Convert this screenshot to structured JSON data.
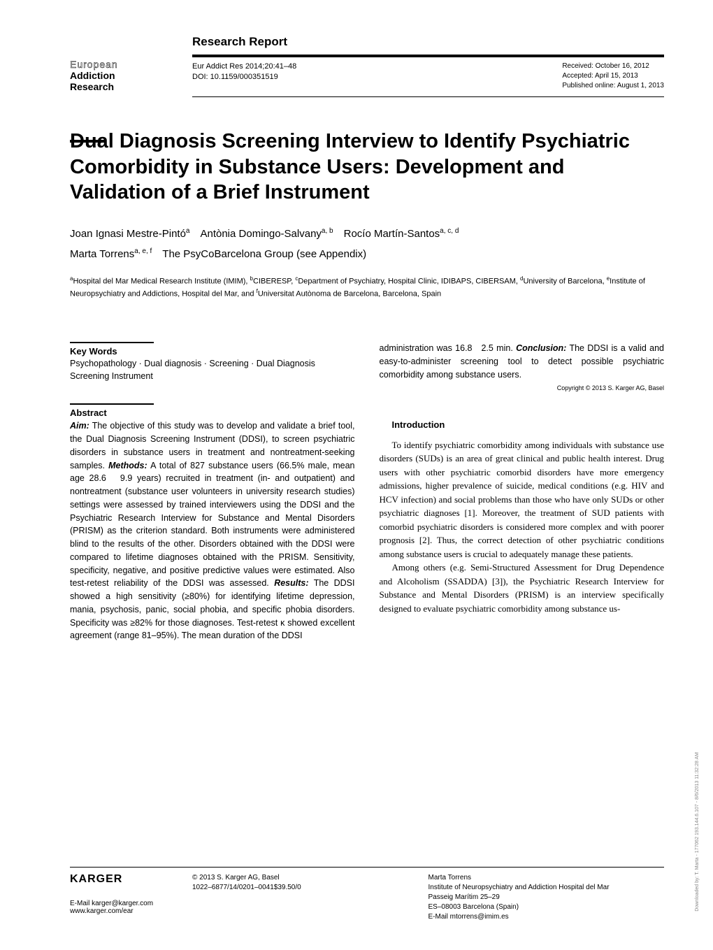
{
  "header": {
    "report_type": "Research Report",
    "journal_brand": {
      "line1": "European",
      "line2": "Addiction",
      "line3": "Research"
    },
    "citation": "Eur Addict Res 2014;20:41–48",
    "doi": "DOI: 10.1159/000351519",
    "received": "Received: October 16, 2012",
    "accepted": "Accepted: April 15, 2013",
    "published": "Published online: August 1, 2013"
  },
  "title": "Dual Diagnosis Screening Interview to Identify Psychiatric Comorbidity in Substance Users: Development and Validation of a Brief Instrument",
  "authors_html": "Joan Ignasi Mestre-Pintó<sup>a</sup><span class='author-sep'></span>Antònia Domingo-Salvany<sup>a, b</sup><span class='author-sep'></span>Rocío Martín-Santos<sup>a, c, d</sup><br>Marta Torrens<sup>a, e, f</sup><span class='author-sep'></span>The PsyCoBarcelona Group (see Appendix)",
  "affiliations_html": "<sup>a</sup>Hospital del Mar Medical Research Institute (IMIM), <sup>b</sup>CIBERESP, <sup>c</sup>Department of Psychiatry, Hospital Clinic, IDIBAPS, CIBERSAM, <sup>d</sup>University of Barcelona, <sup>e</sup>Institute of Neuropsychiatry and Addictions, Hospital del Mar, and <sup>f</sup>Universitat Autònoma de Barcelona, Barcelona, Spain",
  "keywords": {
    "head": "Key Words",
    "body": "Psychopathology · Dual diagnosis · Screening · Dual Diagnosis Screening Instrument"
  },
  "abstract": {
    "head": "Abstract",
    "body_html": "<b>Aim:</b> The objective of this study was to develop and validate a brief tool, the Dual Diagnosis Screening Instrument (DDSI), to screen psychiatric disorders in substance users in treatment and nontreatment-seeking samples. <b>Methods:</b> A total of 827 substance users (66.5% male, mean age 28.6 &nbsp; 9.9 years) recruited in treatment (in- and outpatient) and nontreatment (substance user volunteers in university research studies) settings were assessed by trained interviewers using the DDSI and the Psychiatric Research Interview for Substance and Mental Disorders (PRISM) as the criterion standard. Both instruments were administered blind to the results of the other. Disorders obtained with the DDSI were compared to lifetime diagnoses obtained with the PRISM. Sensitivity, specificity, negative, and positive predictive values were estimated. Also test-retest reliability of the DDSI was assessed. <b>Results:</b> The DDSI showed a high sensitivity (≥80%) for identifying lifetime depression, mania, psychosis, panic, social phobia, and specific phobia disorders. Specificity was ≥82% for those diagnoses. Test-retest κ showed excellent agreement (range 81–95%). The mean duration of the DDSI"
  },
  "abstract_cont_html": "administration was 16.8 &nbsp; 2.5 min. <b>Conclusion:</b> The DDSI is a valid and easy-to-administer screening tool to detect possible psychiatric comorbidity among substance users.",
  "copyright": "Copyright © 2013 S. Karger AG, Basel",
  "introduction": {
    "head": "Introduction",
    "p1": "To identify psychiatric comorbidity among individuals with substance use disorders (SUDs) is an area of great clinical and public health interest. Drug users with other psychiatric comorbid disorders have more emergency admissions, higher prevalence of suicide, medical conditions (e.g. HIV and HCV infection) and social problems than those who have only SUDs or other psychiatric diagnoses [1]. Moreover, the treatment of SUD patients with comorbid psychiatric disorders is considered more complex and with poorer prognosis [2]. Thus, the correct detection of other psychiatric conditions among substance users is crucial to adequately manage these patients.",
    "p2": "Among others (e.g. Semi-Structured Assessment for Drug Dependence and Alcoholism (SSADDA) [3]), the Psychiatric Research Interview for Substance and Mental Disorders (PRISM) is an interview specifically designed to evaluate psychiatric comorbidity among substance us-"
  },
  "footer": {
    "publisher_logo": "KARGER",
    "email": "E-Mail karger@karger.com",
    "url": "www.karger.com/ear",
    "copyright_line1": "© 2013 S. Karger AG, Basel",
    "copyright_line2": "1022–6877/14/0201–0041$39.50/0",
    "correspondent": {
      "name": "Marta Torrens",
      "affil": "Institute of Neuropsychiatry and Addiction Hospital del Mar",
      "addr1": "Passeig Marítim 25–29",
      "addr2": "ES–08003 Barcelona (Spain)",
      "email": "E-Mail mtorrens@imim.es"
    }
  },
  "side_download": "Downloaded by: T. Marta - 177062\n193.144.6.107 - 8/6/2013 11:32:28 AM"
}
